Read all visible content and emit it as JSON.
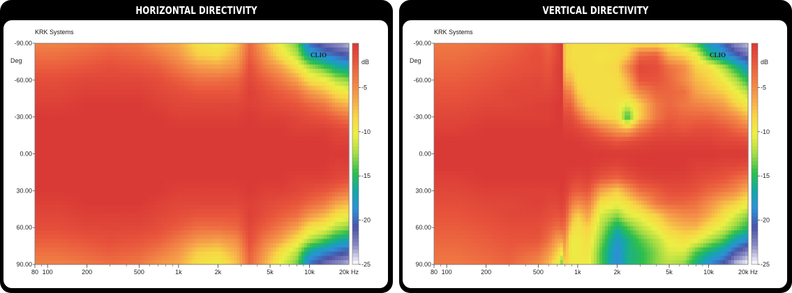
{
  "colors": {
    "background": "#000000",
    "card": "#ffffff",
    "scale": [
      "#d93a36",
      "#e8553c",
      "#f07c44",
      "#f6a44a",
      "#f7d645",
      "#ecef45",
      "#a6dc45",
      "#2fbf4a",
      "#13a8a6",
      "#2d8fd8",
      "#4b53a6",
      "#8b8cc4",
      "#ffffff"
    ]
  },
  "chart_data": [
    {
      "id": "horizontal",
      "type": "heatmap",
      "title": "HORIZONTAL DIRECTIVITY",
      "brand": "KRK Systems",
      "watermark": "CLIO",
      "ylabel": "Deg",
      "xlabel": "Hz",
      "colorbar_label": "dB",
      "x_unit_label": "20k Hz",
      "xscale": "log",
      "xlim": [
        80,
        20000
      ],
      "ylim": [
        -90,
        90
      ],
      "clim": [
        -25,
        0
      ],
      "x_ticks": [
        {
          "value": 80,
          "label": "80"
        },
        {
          "value": 100,
          "label": "100"
        },
        {
          "value": 200,
          "label": "200"
        },
        {
          "value": 500,
          "label": "500"
        },
        {
          "value": 1000,
          "label": "1k"
        },
        {
          "value": 2000,
          "label": "2k"
        },
        {
          "value": 5000,
          "label": "5k"
        },
        {
          "value": 10000,
          "label": "10k"
        }
      ],
      "y_ticks": [
        {
          "value": -90,
          "label": "-90.00"
        },
        {
          "value": -60,
          "label": "-60.00"
        },
        {
          "value": -30,
          "label": "-30.00"
        },
        {
          "value": 0,
          "label": "0.00"
        },
        {
          "value": 30,
          "label": "30.00"
        },
        {
          "value": 60,
          "label": "60.00"
        },
        {
          "value": 90,
          "label": "90.00"
        }
      ],
      "colorbar_ticks": [
        {
          "value": -5,
          "label": "-5"
        },
        {
          "value": -10,
          "label": "-10"
        },
        {
          "value": -15,
          "label": "-15"
        },
        {
          "value": -20,
          "label": "-20"
        },
        {
          "value": -25,
          "label": "-25"
        }
      ],
      "frequencies_hz": [
        80,
        120,
        200,
        300,
        500,
        700,
        1000,
        1400,
        2000,
        2800,
        3500,
        4500,
        6000,
        8000,
        10000,
        13000,
        16000,
        20000
      ],
      "angles_deg": [
        0,
        10,
        20,
        30,
        40,
        50,
        60,
        70,
        80,
        90
      ],
      "levels_db": [
        [
          0,
          0,
          0,
          0,
          -0.5,
          -1,
          -1.5,
          -2.5,
          -3.5,
          -4.5
        ],
        [
          0,
          0,
          0,
          0,
          -0.5,
          -1,
          -1.5,
          -2.5,
          -3.5,
          -4.5
        ],
        [
          0,
          0,
          0,
          0,
          0,
          -0.5,
          -1,
          -2,
          -3,
          -4
        ],
        [
          0,
          0,
          0,
          0,
          0,
          -0.5,
          -1,
          -1.5,
          -2.5,
          -3.5
        ],
        [
          0,
          0,
          0,
          0,
          0,
          -0.5,
          -1,
          -2,
          -3,
          -4
        ],
        [
          0,
          0,
          0,
          0,
          -0.5,
          -1,
          -1.5,
          -2.5,
          -4,
          -5.5
        ],
        [
          0,
          0,
          0,
          -0.5,
          -1,
          -1.5,
          -2.5,
          -4,
          -5.5,
          -6.5
        ],
        [
          0,
          0,
          0,
          -0.5,
          -1,
          -2,
          -3.5,
          -5.5,
          -8,
          -9
        ],
        [
          0,
          0,
          0,
          -0.5,
          -1,
          -2,
          -3.5,
          -6,
          -8.5,
          -10
        ],
        [
          0,
          0,
          0,
          -0.5,
          -1,
          -2,
          -3,
          -5,
          -6.5,
          -7.5
        ],
        [
          0,
          0,
          0,
          0,
          -0.5,
          -0.5,
          -1,
          -1.5,
          -2.5,
          -3
        ],
        [
          0,
          0,
          0,
          -0.5,
          -1,
          -1.5,
          -2.5,
          -4,
          -5.5,
          -6.5
        ],
        [
          0,
          0,
          0,
          -0.5,
          -1.5,
          -2.5,
          -4,
          -6,
          -9,
          -10.5
        ],
        [
          0,
          0,
          -0.5,
          -1,
          -2,
          -3.5,
          -6,
          -9,
          -12,
          -13.5
        ],
        [
          0,
          0,
          -0.5,
          -1.5,
          -3,
          -5.5,
          -9,
          -12,
          -17,
          -20
        ],
        [
          0,
          0,
          -0.5,
          -2,
          -4,
          -7,
          -10,
          -14,
          -19,
          -22
        ],
        [
          0,
          -0.5,
          -1,
          -3,
          -6,
          -9,
          -12,
          -16,
          -20,
          -23
        ],
        [
          0,
          -0.5,
          -1.5,
          -4,
          -7,
          -10,
          -13,
          -17,
          -21,
          -24
        ]
      ]
    },
    {
      "id": "vertical",
      "type": "heatmap",
      "title": "VERTICAL DIRECTIVITY",
      "brand": "KRK Systems",
      "watermark": "CLIO",
      "ylabel": "Deg",
      "xlabel": "Hz",
      "colorbar_label": "dB",
      "x_unit_label": "20k Hz",
      "xscale": "log",
      "xlim": [
        80,
        20000
      ],
      "ylim": [
        -90,
        90
      ],
      "clim": [
        -25,
        0
      ],
      "x_ticks": [
        {
          "value": 80,
          "label": "80"
        },
        {
          "value": 100,
          "label": "100"
        },
        {
          "value": 200,
          "label": "200"
        },
        {
          "value": 500,
          "label": "500"
        },
        {
          "value": 1000,
          "label": "1k"
        },
        {
          "value": 2000,
          "label": "2k"
        },
        {
          "value": 5000,
          "label": "5k"
        },
        {
          "value": 10000,
          "label": "10k"
        }
      ],
      "y_ticks": [
        {
          "value": -90,
          "label": "-90.00"
        },
        {
          "value": -60,
          "label": "-60.00"
        },
        {
          "value": -30,
          "label": "-30.00"
        },
        {
          "value": 0,
          "label": "0.00"
        },
        {
          "value": 30,
          "label": "30.00"
        },
        {
          "value": 60,
          "label": "60.00"
        },
        {
          "value": 90,
          "label": "90.00"
        }
      ],
      "colorbar_ticks": [
        {
          "value": -5,
          "label": "-5"
        },
        {
          "value": -10,
          "label": "-10"
        },
        {
          "value": -15,
          "label": "-15"
        },
        {
          "value": -20,
          "label": "-20"
        },
        {
          "value": -25,
          "label": "-25"
        }
      ],
      "frequencies_hz": [
        80,
        120,
        200,
        300,
        500,
        600,
        700,
        760,
        800,
        850,
        900,
        1000,
        1200,
        1500,
        2000,
        2400,
        3000,
        4000,
        5000,
        6500,
        8000,
        10000,
        13000,
        16000,
        20000
      ],
      "angles_deg": [
        -90,
        -80,
        -70,
        -60,
        -50,
        -40,
        -30,
        -20,
        -10,
        0,
        10,
        20,
        30,
        40,
        50,
        60,
        70,
        80,
        90
      ],
      "levels_db": [
        [
          -4,
          -3.5,
          -3,
          -2.5,
          -2,
          -1.5,
          -1,
          -0.5,
          0,
          0,
          0,
          -0.5,
          -1,
          -1.5,
          -2,
          -2.5,
          -3,
          -3.5,
          -4
        ],
        [
          -4,
          -3.5,
          -3,
          -2.5,
          -2,
          -1.5,
          -1,
          -0.5,
          0,
          0,
          0,
          -0.5,
          -1,
          -1.5,
          -2,
          -2.5,
          -3,
          -3.5,
          -4
        ],
        [
          -3.5,
          -3,
          -2.5,
          -2,
          -1.5,
          -1,
          -0.5,
          0,
          0,
          0,
          0,
          0,
          -0.5,
          -1,
          -1.5,
          -2,
          -2.5,
          -3,
          -3.5
        ],
        [
          -3,
          -2.5,
          -2,
          -1.5,
          -1,
          -1,
          -0.5,
          0,
          0,
          0,
          0,
          0,
          -0.5,
          -1,
          -1,
          -1.5,
          -2,
          -2.5,
          -3
        ],
        [
          -2,
          -1.5,
          -1.5,
          -1,
          -1,
          -0.5,
          -0.5,
          0,
          0,
          0,
          0,
          0,
          -0.5,
          -0.5,
          -1,
          -1.5,
          -2,
          -3.5,
          -5
        ],
        [
          -3,
          -2.5,
          -2,
          -1.5,
          -1,
          -0.5,
          -0.5,
          0,
          0,
          0,
          0,
          0,
          -0.5,
          -1,
          -1.5,
          -2.5,
          -3.5,
          -5.5,
          -7
        ],
        [
          -1,
          -1,
          -0.5,
          -0.5,
          -0.5,
          0,
          0,
          0,
          0,
          0,
          0,
          0,
          -0.5,
          -1,
          -2,
          -3.5,
          -6,
          -8,
          -10
        ],
        [
          0,
          0,
          0,
          0,
          0,
          0,
          0,
          0,
          0,
          0,
          0,
          0,
          0,
          -0.5,
          -1.5,
          -3,
          -6,
          -10,
          -14
        ],
        [
          -9,
          -9,
          -8.5,
          -7,
          -4.5,
          -3,
          -1.5,
          -0.5,
          0,
          0,
          0,
          0,
          -0.5,
          -1,
          -2,
          -3.5,
          -5,
          -6,
          -7
        ],
        [
          -8,
          -8,
          -8,
          -6.5,
          -4,
          -2.5,
          -1,
          -0.5,
          0,
          0,
          0,
          -0.5,
          -1,
          -2.5,
          -4,
          -6,
          -8,
          -9,
          -9
        ],
        [
          -9,
          -9,
          -8.5,
          -7,
          -5,
          -3,
          -1.5,
          -0.5,
          0,
          0,
          0,
          -0.5,
          -2,
          -4,
          -6.5,
          -8.5,
          -10,
          -10,
          -10
        ],
        [
          -9,
          -9,
          -9,
          -9,
          -8,
          -6,
          -3,
          -1,
          0,
          0,
          0,
          -1,
          -2.5,
          -5,
          -8,
          -9.5,
          -10,
          -10,
          -10
        ],
        [
          -9,
          -9,
          -9,
          -9,
          -9,
          -8.5,
          -6,
          -2,
          -0.5,
          0,
          0,
          -0.5,
          -2,
          -4,
          -6,
          -8,
          -9,
          -9.5,
          -10
        ],
        [
          -9,
          -9.5,
          -9,
          -9,
          -9,
          -9,
          -8,
          -4,
          -1,
          0,
          -0.5,
          -2,
          -6,
          -9,
          -11,
          -12,
          -13,
          -14,
          -14
        ],
        [
          -9,
          -9,
          -8.5,
          -9,
          -9,
          -9.5,
          -9,
          -6,
          -2,
          0,
          -1,
          -3,
          -8,
          -10,
          -13,
          -16,
          -18,
          -19,
          -19
        ],
        [
          -9,
          -8,
          -5,
          -7,
          -8,
          -11,
          -15,
          -7,
          -1.5,
          0,
          -0.5,
          -2,
          -6,
          -9,
          -11,
          -14,
          -16,
          -16,
          -16
        ],
        [
          -9,
          -3,
          -1,
          -2,
          -5,
          -8,
          -8,
          -4,
          -1,
          0,
          0,
          -1,
          -3.5,
          -7,
          -10,
          -12,
          -14,
          -15,
          -15
        ],
        [
          -9,
          -2.5,
          -1.5,
          -2,
          -3,
          -4,
          -4,
          -2,
          -0.5,
          0,
          0,
          -0.5,
          -2.5,
          -4,
          -8,
          -10,
          -12,
          -13,
          -13
        ],
        [
          -10,
          -7,
          -3.5,
          -3,
          -3,
          -3,
          -2.5,
          -1.5,
          -0.5,
          0,
          0,
          -0.5,
          -1.5,
          -3,
          -6,
          -8,
          -10,
          -11,
          -12
        ],
        [
          -12,
          -8,
          -5,
          -5,
          -3.5,
          -4,
          -3,
          -2,
          -0.5,
          0,
          0,
          -0.5,
          -1.5,
          -3,
          -5,
          -7,
          -9,
          -11,
          -13
        ],
        [
          -14,
          -10,
          -8,
          -7,
          -6,
          -4.5,
          -3,
          -1.5,
          -0.5,
          0,
          -0.5,
          -1,
          -2,
          -3.5,
          -5,
          -7,
          -10,
          -14,
          -16
        ],
        [
          -18,
          -15,
          -9,
          -8,
          -7,
          -5,
          -3,
          -1.5,
          -0.5,
          0,
          -0.5,
          -1.5,
          -3,
          -5,
          -6.5,
          -9,
          -12,
          -16,
          -19
        ],
        [
          -20,
          -18,
          -12,
          -10,
          -8,
          -6,
          -4,
          -2,
          -1,
          0,
          -1,
          -2,
          -4,
          -7,
          -9,
          -11,
          -14,
          -18,
          -21
        ],
        [
          -23,
          -20,
          -15,
          -12,
          -10,
          -8,
          -5,
          -3,
          -1,
          0,
          -1,
          -3,
          -5,
          -8,
          -11,
          -13,
          -17,
          -21,
          -24
        ],
        [
          -24,
          -22,
          -18,
          -15,
          -12,
          -10,
          -7,
          -4,
          -1.5,
          0,
          -1.5,
          -4,
          -7,
          -10,
          -13,
          -15,
          -19,
          -23,
          -25
        ]
      ]
    }
  ]
}
